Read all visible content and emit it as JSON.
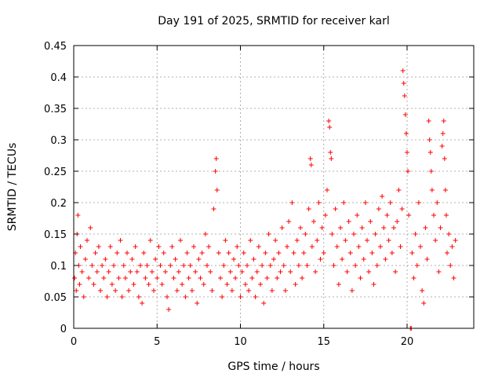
{
  "chart_data": {
    "type": "scatter",
    "title": "Day 191 of 2025, SRMTID for receiver karl",
    "xlabel": "GPS time / hours",
    "ylabel": "SRMTID / TECUs",
    "xlim": [
      0,
      24
    ],
    "ylim": [
      0,
      0.45
    ],
    "grid": true,
    "marker": "+",
    "marker_color": "#ff0000",
    "x_ticks": [
      0,
      5,
      10,
      15,
      20
    ],
    "x_tick_labels": [
      "0",
      "5",
      "10",
      "15",
      "20"
    ],
    "y_ticks": [
      0,
      0.05,
      0.1,
      0.15,
      0.2,
      0.25,
      0.3,
      0.35,
      0.4,
      0.45
    ],
    "y_tick_labels": [
      "0",
      "0.05",
      "0.1",
      "0.15",
      "0.2",
      "0.25",
      "0.3",
      "0.35",
      "0.4",
      "0.45"
    ],
    "series": [
      {
        "name": "SRMTID",
        "points": [
          [
            0.05,
            0.08
          ],
          [
            0.1,
            0.12
          ],
          [
            0.15,
            0.06
          ],
          [
            0.2,
            0.15
          ],
          [
            0.25,
            0.18
          ],
          [
            0.3,
            0.1
          ],
          [
            0.35,
            0.07
          ],
          [
            0.4,
            0.13
          ],
          [
            0.5,
            0.09
          ],
          [
            0.6,
            0.05
          ],
          [
            0.7,
            0.11
          ],
          [
            0.8,
            0.14
          ],
          [
            0.9,
            0.08
          ],
          [
            1.0,
            0.16
          ],
          [
            1.1,
            0.1
          ],
          [
            1.2,
            0.07
          ],
          [
            1.3,
            0.12
          ],
          [
            1.4,
            0.09
          ],
          [
            1.5,
            0.13
          ],
          [
            1.6,
            0.06
          ],
          [
            1.7,
            0.1
          ],
          [
            1.8,
            0.08
          ],
          [
            1.9,
            0.11
          ],
          [
            2.0,
            0.05
          ],
          [
            2.1,
            0.09
          ],
          [
            2.2,
            0.13
          ],
          [
            2.3,
            0.07
          ],
          [
            2.4,
            0.1
          ],
          [
            2.5,
            0.06
          ],
          [
            2.6,
            0.12
          ],
          [
            2.7,
            0.08
          ],
          [
            2.8,
            0.14
          ],
          [
            2.9,
            0.05
          ],
          [
            3.0,
            0.1
          ],
          [
            3.1,
            0.08
          ],
          [
            3.2,
            0.12
          ],
          [
            3.3,
            0.06
          ],
          [
            3.4,
            0.09
          ],
          [
            3.5,
            0.11
          ],
          [
            3.6,
            0.07
          ],
          [
            3.7,
            0.13
          ],
          [
            3.8,
            0.09
          ],
          [
            3.9,
            0.05
          ],
          [
            4.0,
            0.1
          ],
          [
            4.1,
            0.04
          ],
          [
            4.2,
            0.12
          ],
          [
            4.3,
            0.08
          ],
          [
            4.4,
            0.1
          ],
          [
            4.5,
            0.07
          ],
          [
            4.6,
            0.14
          ],
          [
            4.7,
            0.09
          ],
          [
            4.8,
            0.06
          ],
          [
            4.9,
            0.11
          ],
          [
            5.0,
            0.08
          ],
          [
            5.1,
            0.13
          ],
          [
            5.2,
            0.1
          ],
          [
            5.3,
            0.07
          ],
          [
            5.4,
            0.12
          ],
          [
            5.5,
            0.09
          ],
          [
            5.6,
            0.05
          ],
          [
            5.7,
            0.03
          ],
          [
            5.8,
            0.1
          ],
          [
            5.9,
            0.13
          ],
          [
            6.0,
            0.08
          ],
          [
            6.1,
            0.11
          ],
          [
            6.2,
            0.06
          ],
          [
            6.3,
            0.09
          ],
          [
            6.4,
            0.14
          ],
          [
            6.5,
            0.07
          ],
          [
            6.6,
            0.1
          ],
          [
            6.7,
            0.05
          ],
          [
            6.8,
            0.12
          ],
          [
            6.9,
            0.08
          ],
          [
            7.0,
            0.1
          ],
          [
            7.1,
            0.06
          ],
          [
            7.2,
            0.13
          ],
          [
            7.3,
            0.09
          ],
          [
            7.4,
            0.04
          ],
          [
            7.5,
            0.11
          ],
          [
            7.6,
            0.08
          ],
          [
            7.7,
            0.12
          ],
          [
            7.8,
            0.07
          ],
          [
            7.9,
            0.15
          ],
          [
            8.0,
            0.1
          ],
          [
            8.1,
            0.13
          ],
          [
            8.2,
            0.09
          ],
          [
            8.3,
            0.06
          ],
          [
            8.4,
            0.19
          ],
          [
            8.5,
            0.25
          ],
          [
            8.55,
            0.27
          ],
          [
            8.6,
            0.22
          ],
          [
            8.7,
            0.12
          ],
          [
            8.8,
            0.08
          ],
          [
            8.9,
            0.05
          ],
          [
            9.0,
            0.1
          ],
          [
            9.1,
            0.14
          ],
          [
            9.2,
            0.07
          ],
          [
            9.3,
            0.12
          ],
          [
            9.4,
            0.09
          ],
          [
            9.5,
            0.06
          ],
          [
            9.6,
            0.11
          ],
          [
            9.7,
            0.08
          ],
          [
            9.8,
            0.13
          ],
          [
            9.9,
            0.1
          ],
          [
            10.0,
            0.05
          ],
          [
            10.1,
            0.09
          ],
          [
            10.2,
            0.12
          ],
          [
            10.3,
            0.07
          ],
          [
            10.4,
            0.1
          ],
          [
            10.5,
            0.06
          ],
          [
            10.6,
            0.14
          ],
          [
            10.7,
            0.08
          ],
          [
            10.8,
            0.11
          ],
          [
            10.9,
            0.05
          ],
          [
            11.0,
            0.09
          ],
          [
            11.1,
            0.13
          ],
          [
            11.2,
            0.07
          ],
          [
            11.3,
            0.1
          ],
          [
            11.4,
            0.04
          ],
          [
            11.5,
            0.12
          ],
          [
            11.6,
            0.08
          ],
          [
            11.7,
            0.15
          ],
          [
            11.8,
            0.1
          ],
          [
            11.9,
            0.06
          ],
          [
            12.0,
            0.11
          ],
          [
            12.1,
            0.14
          ],
          [
            12.2,
            0.08
          ],
          [
            12.3,
            0.12
          ],
          [
            12.4,
            0.09
          ],
          [
            12.5,
            0.16
          ],
          [
            12.6,
            0.1
          ],
          [
            12.7,
            0.06
          ],
          [
            12.8,
            0.13
          ],
          [
            12.9,
            0.17
          ],
          [
            13.0,
            0.09
          ],
          [
            13.1,
            0.2
          ],
          [
            13.2,
            0.12
          ],
          [
            13.3,
            0.07
          ],
          [
            13.4,
            0.14
          ],
          [
            13.5,
            0.1
          ],
          [
            13.6,
            0.16
          ],
          [
            13.7,
            0.08
          ],
          [
            13.8,
            0.12
          ],
          [
            13.9,
            0.15
          ],
          [
            14.0,
            0.1
          ],
          [
            14.1,
            0.19
          ],
          [
            14.2,
            0.27
          ],
          [
            14.25,
            0.26
          ],
          [
            14.3,
            0.13
          ],
          [
            14.4,
            0.17
          ],
          [
            14.5,
            0.09
          ],
          [
            14.6,
            0.14
          ],
          [
            14.7,
            0.2
          ],
          [
            14.8,
            0.11
          ],
          [
            14.9,
            0.16
          ],
          [
            15.0,
            0.12
          ],
          [
            15.1,
            0.18
          ],
          [
            15.2,
            0.22
          ],
          [
            15.3,
            0.33
          ],
          [
            15.35,
            0.32
          ],
          [
            15.4,
            0.28
          ],
          [
            15.45,
            0.27
          ],
          [
            15.5,
            0.15
          ],
          [
            15.6,
            0.1
          ],
          [
            15.7,
            0.19
          ],
          [
            15.8,
            0.13
          ],
          [
            15.9,
            0.07
          ],
          [
            16.0,
            0.16
          ],
          [
            16.1,
            0.11
          ],
          [
            16.2,
            0.2
          ],
          [
            16.3,
            0.14
          ],
          [
            16.4,
            0.09
          ],
          [
            16.5,
            0.17
          ],
          [
            16.6,
            0.12
          ],
          [
            16.7,
            0.06
          ],
          [
            16.8,
            0.15
          ],
          [
            16.9,
            0.1
          ],
          [
            17.0,
            0.18
          ],
          [
            17.1,
            0.13
          ],
          [
            17.2,
            0.08
          ],
          [
            17.3,
            0.16
          ],
          [
            17.4,
            0.11
          ],
          [
            17.5,
            0.2
          ],
          [
            17.6,
            0.14
          ],
          [
            17.7,
            0.09
          ],
          [
            17.8,
            0.17
          ],
          [
            17.9,
            0.12
          ],
          [
            18.0,
            0.07
          ],
          [
            18.1,
            0.15
          ],
          [
            18.2,
            0.1
          ],
          [
            18.3,
            0.19
          ],
          [
            18.4,
            0.13
          ],
          [
            18.5,
            0.21
          ],
          [
            18.6,
            0.16
          ],
          [
            18.7,
            0.11
          ],
          [
            18.8,
            0.18
          ],
          [
            18.9,
            0.14
          ],
          [
            19.0,
            0.2
          ],
          [
            19.1,
            0.12
          ],
          [
            19.2,
            0.16
          ],
          [
            19.3,
            0.09
          ],
          [
            19.4,
            0.17
          ],
          [
            19.5,
            0.22
          ],
          [
            19.6,
            0.13
          ],
          [
            19.7,
            0.19
          ],
          [
            19.75,
            0.41
          ],
          [
            19.8,
            0.39
          ],
          [
            19.85,
            0.37
          ],
          [
            19.9,
            0.34
          ],
          [
            19.95,
            0.31
          ],
          [
            20.0,
            0.28
          ],
          [
            20.05,
            0.25
          ],
          [
            20.1,
            0.18
          ],
          [
            20.2,
            0.0
          ],
          [
            20.25,
            0.0
          ],
          [
            20.3,
            0.12
          ],
          [
            20.4,
            0.08
          ],
          [
            20.5,
            0.15
          ],
          [
            20.6,
            0.1
          ],
          [
            20.7,
            0.2
          ],
          [
            20.8,
            0.13
          ],
          [
            20.9,
            0.06
          ],
          [
            21.0,
            0.04
          ],
          [
            21.1,
            0.16
          ],
          [
            21.2,
            0.11
          ],
          [
            21.3,
            0.33
          ],
          [
            21.35,
            0.3
          ],
          [
            21.4,
            0.28
          ],
          [
            21.45,
            0.25
          ],
          [
            21.5,
            0.22
          ],
          [
            21.6,
            0.18
          ],
          [
            21.7,
            0.14
          ],
          [
            21.8,
            0.2
          ],
          [
            21.9,
            0.09
          ],
          [
            22.0,
            0.16
          ],
          [
            22.1,
            0.29
          ],
          [
            22.15,
            0.31
          ],
          [
            22.2,
            0.33
          ],
          [
            22.25,
            0.27
          ],
          [
            22.3,
            0.22
          ],
          [
            22.35,
            0.18
          ],
          [
            22.4,
            0.12
          ],
          [
            22.5,
            0.15
          ],
          [
            22.6,
            0.1
          ],
          [
            22.7,
            0.13
          ],
          [
            22.8,
            0.08
          ],
          [
            22.9,
            0.14
          ]
        ]
      }
    ]
  }
}
